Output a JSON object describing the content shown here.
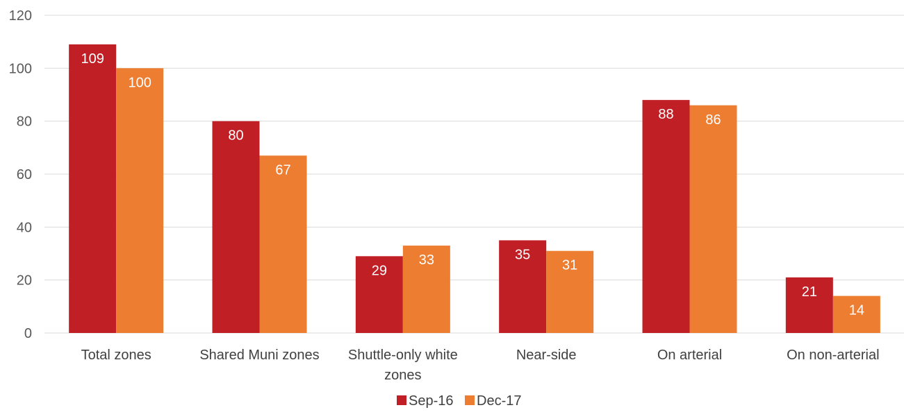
{
  "chart_data": {
    "type": "bar",
    "categories": [
      [
        "Total zones"
      ],
      [
        "Shared Muni zones"
      ],
      [
        "Shuttle-only white",
        "zones"
      ],
      [
        "Near-side"
      ],
      [
        "On arterial"
      ],
      [
        "On non-arterial"
      ]
    ],
    "series": [
      {
        "name": "Sep-16",
        "values": [
          109,
          80,
          29,
          35,
          88,
          21
        ],
        "color": "#C01F26"
      },
      {
        "name": "Dec-17",
        "values": [
          100,
          67,
          33,
          31,
          86,
          14
        ],
        "color": "#ED7D31"
      }
    ],
    "yticks": [
      "0",
      "20",
      "40",
      "60",
      "80",
      "100",
      "120"
    ],
    "ylim": [
      0,
      120
    ],
    "grid": true,
    "legend_position": "bottom-center",
    "gridline_color": "#D9D9D9"
  }
}
